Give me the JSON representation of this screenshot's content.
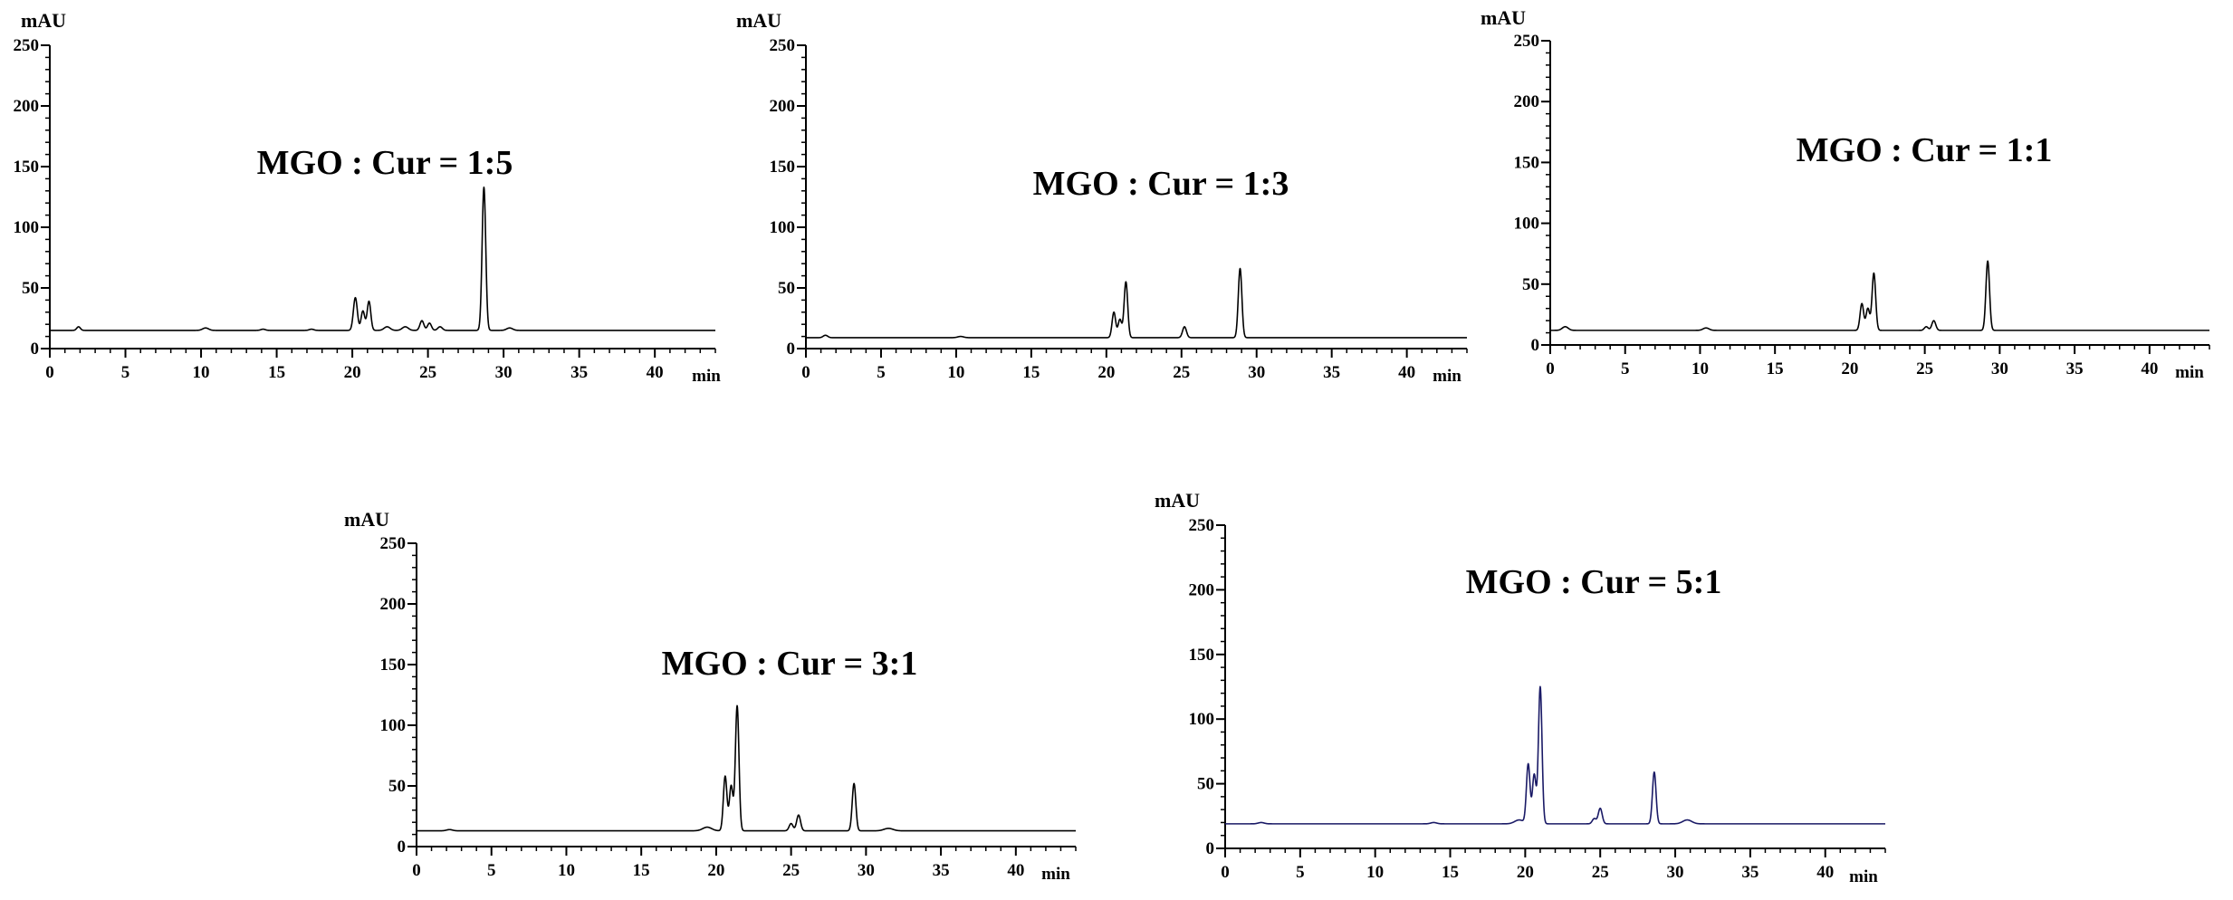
{
  "chart_data": [
    {
      "type": "line",
      "annotation": "MGO : Cur = 1:5",
      "xlabel": "min",
      "ylabel": "mAU",
      "xlim": [
        0,
        44
      ],
      "ylim": [
        0,
        250
      ],
      "xticks": [
        0,
        5,
        10,
        15,
        20,
        25,
        30,
        35,
        40
      ],
      "yticks": [
        0,
        50,
        100,
        150,
        200,
        250
      ],
      "color": "#000000",
      "baseline": 15,
      "series": [
        {
          "peaks": [
            [
              1.9,
              3,
              0.12
            ],
            [
              10.3,
              2,
              0.2
            ],
            [
              14.1,
              1,
              0.15
            ],
            [
              17.3,
              1,
              0.15
            ],
            [
              20.2,
              27,
              0.13
            ],
            [
              20.7,
              16,
              0.12
            ],
            [
              21.1,
              24,
              0.12
            ],
            [
              22.3,
              3,
              0.2
            ],
            [
              23.5,
              3,
              0.2
            ],
            [
              24.6,
              8,
              0.13
            ],
            [
              25.1,
              6,
              0.13
            ],
            [
              25.8,
              3,
              0.15
            ],
            [
              28.7,
              118,
              0.12
            ],
            [
              30.4,
              2,
              0.2
            ]
          ]
        }
      ]
    },
    {
      "type": "line",
      "annotation": "MGO : Cur = 1:3",
      "xlabel": "min",
      "ylabel": "mAU",
      "xlim": [
        0,
        44
      ],
      "ylim": [
        0,
        250
      ],
      "xticks": [
        0,
        5,
        10,
        15,
        20,
        25,
        30,
        35,
        40
      ],
      "yticks": [
        0,
        50,
        100,
        150,
        200,
        250
      ],
      "color": "#000000",
      "baseline": 9,
      "series": [
        {
          "peaks": [
            [
              1.3,
              2,
              0.15
            ],
            [
              10.3,
              1,
              0.2
            ],
            [
              20.5,
              21,
              0.12
            ],
            [
              20.9,
              15,
              0.12
            ],
            [
              21.3,
              46,
              0.12
            ],
            [
              25.2,
              9,
              0.13
            ],
            [
              28.9,
              57,
              0.12
            ]
          ]
        }
      ]
    },
    {
      "type": "line",
      "annotation": "MGO : Cur = 1:1",
      "xlabel": "min",
      "ylabel": "mAU",
      "xlim": [
        0,
        44
      ],
      "ylim": [
        0,
        250
      ],
      "xticks": [
        0,
        5,
        10,
        15,
        20,
        25,
        30,
        35,
        40
      ],
      "yticks": [
        0,
        50,
        100,
        150,
        200,
        250
      ],
      "color": "#000000",
      "baseline": 12,
      "series": [
        {
          "peaks": [
            [
              1.0,
              3,
              0.2
            ],
            [
              10.4,
              2,
              0.2
            ],
            [
              20.8,
              22,
              0.12
            ],
            [
              21.2,
              18,
              0.12
            ],
            [
              21.6,
              47,
              0.12
            ],
            [
              25.1,
              3,
              0.13
            ],
            [
              25.6,
              8,
              0.13
            ],
            [
              29.2,
              57,
              0.12
            ]
          ]
        }
      ]
    },
    {
      "type": "line",
      "annotation": "MGO : Cur = 3:1",
      "xlabel": "min",
      "ylabel": "mAU",
      "xlim": [
        0,
        44
      ],
      "ylim": [
        0,
        250
      ],
      "xticks": [
        0,
        5,
        10,
        15,
        20,
        25,
        30,
        35,
        40
      ],
      "yticks": [
        0,
        50,
        100,
        150,
        200,
        250
      ],
      "color": "#000000",
      "baseline": 13,
      "series": [
        {
          "peaks": [
            [
              2.2,
              1,
              0.2
            ],
            [
              19.4,
              3,
              0.3
            ],
            [
              20.6,
              45,
              0.12
            ],
            [
              21.0,
              37,
              0.12
            ],
            [
              21.4,
              103,
              0.12
            ],
            [
              25.0,
              6,
              0.13
            ],
            [
              25.5,
              13,
              0.13
            ],
            [
              29.2,
              39,
              0.12
            ],
            [
              31.5,
              2,
              0.3
            ]
          ]
        }
      ]
    },
    {
      "type": "line",
      "annotation": "MGO : Cur = 5:1",
      "xlabel": "min",
      "ylabel": "mAU",
      "xlim": [
        0,
        44
      ],
      "ylim": [
        0,
        250
      ],
      "xticks": [
        0,
        5,
        10,
        15,
        20,
        25,
        30,
        35,
        40
      ],
      "yticks": [
        0,
        50,
        100,
        150,
        200,
        250
      ],
      "color": "#1a1a66",
      "baseline": 19,
      "series": [
        {
          "peaks": [
            [
              2.4,
              1,
              0.2
            ],
            [
              13.9,
              1,
              0.2
            ],
            [
              19.6,
              3,
              0.3
            ],
            [
              20.2,
              46,
              0.12
            ],
            [
              20.6,
              38,
              0.12
            ],
            [
              21.0,
              106,
              0.12
            ],
            [
              24.6,
              4,
              0.13
            ],
            [
              25.0,
              12,
              0.13
            ],
            [
              28.6,
              40,
              0.12
            ],
            [
              30.8,
              3,
              0.3
            ]
          ]
        }
      ]
    }
  ]
}
